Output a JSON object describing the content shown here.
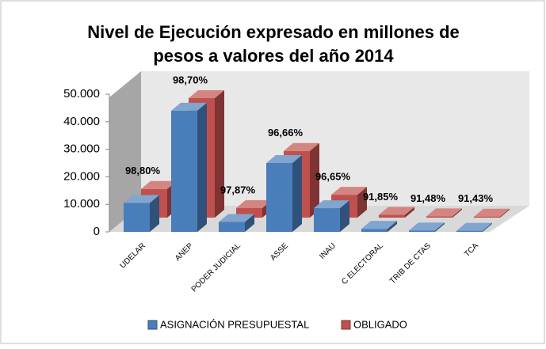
{
  "chart_data": {
    "type": "bar3d",
    "title": [
      "Nivel de Ejecución expresado en millones de",
      "pesos a valores del año 2014"
    ],
    "categories": [
      "UDELAR",
      "ANEP",
      "PODER JUDICIAL",
      "ASSE",
      "INAU",
      "C ELECTORAL",
      "TRIB DE CTAS",
      "TCA"
    ],
    "series": [
      {
        "name": "ASIGNACIÓN PRESUPUESTAL",
        "color": "#4a7ebb",
        "values": [
          10500,
          44000,
          3600,
          25000,
          8600,
          1100,
          500,
          400
        ]
      },
      {
        "name": "OBLIGADO",
        "color": "#c0504d",
        "values": [
          10400,
          43400,
          3500,
          24200,
          8300,
          1000,
          460,
          370
        ]
      }
    ],
    "annotations": [
      "98,80%",
      "98,70%",
      "97,87%",
      "96,66%",
      "96,65%",
      "91,85%",
      "91,48%",
      "91,43%"
    ],
    "ylim": [
      0,
      50000
    ],
    "yticks": [
      0,
      {
        "value": 10000,
        "label": "10.000"
      },
      {
        "value": 20000,
        "label": "20.000"
      },
      {
        "value": 30000,
        "label": "30.000"
      },
      {
        "value": 40000,
        "label": "40.000"
      },
      {
        "value": 50000,
        "label": "50.000"
      }
    ],
    "legend": "bottom"
  }
}
